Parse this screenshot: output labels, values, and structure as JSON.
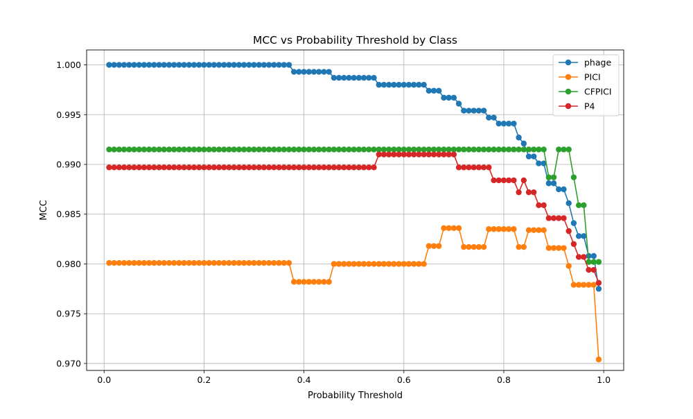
{
  "chart_data": {
    "type": "line",
    "title": "MCC vs Probability Threshold by Class",
    "xlabel": "Probability Threshold",
    "ylabel": "MCC",
    "xlim": [
      -0.035,
      1.04
    ],
    "ylim": [
      0.9693,
      1.0015
    ],
    "xticks": [
      0.0,
      0.2,
      0.4,
      0.6,
      0.8,
      1.0
    ],
    "xtick_labels": [
      "0.0",
      "0.2",
      "0.4",
      "0.6",
      "0.8",
      "1.0"
    ],
    "yticks": [
      0.97,
      0.975,
      0.98,
      0.985,
      0.99,
      0.995,
      1.0
    ],
    "ytick_labels": [
      "0.970",
      "0.975",
      "0.980",
      "0.985",
      "0.990",
      "0.995",
      "1.000"
    ],
    "grid": true,
    "legend_position": "top-right",
    "x": [
      0.01,
      0.02,
      0.03,
      0.04,
      0.05,
      0.06,
      0.07,
      0.08,
      0.09,
      0.1,
      0.11,
      0.12,
      0.13,
      0.14,
      0.15,
      0.16,
      0.17,
      0.18,
      0.19,
      0.2,
      0.21,
      0.22,
      0.23,
      0.24,
      0.25,
      0.26,
      0.27,
      0.28,
      0.29,
      0.3,
      0.31,
      0.32,
      0.33,
      0.34,
      0.35,
      0.36,
      0.37,
      0.38,
      0.39,
      0.4,
      0.41,
      0.42,
      0.43,
      0.44,
      0.45,
      0.46,
      0.47,
      0.48,
      0.49,
      0.5,
      0.51,
      0.52,
      0.53,
      0.54,
      0.55,
      0.56,
      0.57,
      0.58,
      0.59,
      0.6,
      0.61,
      0.62,
      0.63,
      0.64,
      0.65,
      0.66,
      0.67,
      0.68,
      0.69,
      0.7,
      0.71,
      0.72,
      0.73,
      0.74,
      0.75,
      0.76,
      0.77,
      0.78,
      0.79,
      0.8,
      0.81,
      0.82,
      0.83,
      0.84,
      0.85,
      0.86,
      0.87,
      0.88,
      0.89,
      0.9,
      0.91,
      0.92,
      0.93,
      0.94,
      0.95,
      0.96,
      0.97,
      0.98,
      0.99
    ],
    "series": [
      {
        "name": "phage",
        "color": "#1f77b4",
        "values": [
          1.0,
          1.0,
          1.0,
          1.0,
          1.0,
          1.0,
          1.0,
          1.0,
          1.0,
          1.0,
          1.0,
          1.0,
          1.0,
          1.0,
          1.0,
          1.0,
          1.0,
          1.0,
          1.0,
          1.0,
          1.0,
          1.0,
          1.0,
          1.0,
          1.0,
          1.0,
          1.0,
          1.0,
          1.0,
          1.0,
          1.0,
          1.0,
          1.0,
          1.0,
          1.0,
          1.0,
          1.0,
          0.9993,
          0.9993,
          0.9993,
          0.9993,
          0.9993,
          0.9993,
          0.9993,
          0.9993,
          0.9987,
          0.9987,
          0.9987,
          0.9987,
          0.9987,
          0.9987,
          0.9987,
          0.9987,
          0.9987,
          0.998,
          0.998,
          0.998,
          0.998,
          0.998,
          0.998,
          0.998,
          0.998,
          0.998,
          0.998,
          0.9974,
          0.9974,
          0.9974,
          0.9967,
          0.9967,
          0.9967,
          0.9961,
          0.9954,
          0.9954,
          0.9954,
          0.9954,
          0.9954,
          0.9947,
          0.9947,
          0.9941,
          0.9941,
          0.9941,
          0.9941,
          0.9927,
          0.9921,
          0.9908,
          0.9908,
          0.9901,
          0.9901,
          0.9881,
          0.9881,
          0.9875,
          0.9875,
          0.9861,
          0.9841,
          0.9828,
          0.9828,
          0.9808,
          0.9808,
          0.9775
        ]
      },
      {
        "name": "PICI",
        "color": "#ff7f0e",
        "values": [
          0.9801,
          0.9801,
          0.9801,
          0.9801,
          0.9801,
          0.9801,
          0.9801,
          0.9801,
          0.9801,
          0.9801,
          0.9801,
          0.9801,
          0.9801,
          0.9801,
          0.9801,
          0.9801,
          0.9801,
          0.9801,
          0.9801,
          0.9801,
          0.9801,
          0.9801,
          0.9801,
          0.9801,
          0.9801,
          0.9801,
          0.9801,
          0.9801,
          0.9801,
          0.9801,
          0.9801,
          0.9801,
          0.9801,
          0.9801,
          0.9801,
          0.9801,
          0.9801,
          0.9782,
          0.9782,
          0.9782,
          0.9782,
          0.9782,
          0.9782,
          0.9782,
          0.9782,
          0.98,
          0.98,
          0.98,
          0.98,
          0.98,
          0.98,
          0.98,
          0.98,
          0.98,
          0.98,
          0.98,
          0.98,
          0.98,
          0.98,
          0.98,
          0.98,
          0.98,
          0.98,
          0.98,
          0.9818,
          0.9818,
          0.9818,
          0.9836,
          0.9836,
          0.9836,
          0.9836,
          0.9817,
          0.9817,
          0.9817,
          0.9817,
          0.9817,
          0.9835,
          0.9835,
          0.9835,
          0.9835,
          0.9835,
          0.9835,
          0.9817,
          0.9817,
          0.9834,
          0.9834,
          0.9834,
          0.9834,
          0.9816,
          0.9816,
          0.9816,
          0.9816,
          0.9798,
          0.9779,
          0.9779,
          0.9779,
          0.9779,
          0.9779,
          0.9704
        ]
      },
      {
        "name": "CFPICI",
        "color": "#2ca02c",
        "values": [
          0.9915,
          0.9915,
          0.9915,
          0.9915,
          0.9915,
          0.9915,
          0.9915,
          0.9915,
          0.9915,
          0.9915,
          0.9915,
          0.9915,
          0.9915,
          0.9915,
          0.9915,
          0.9915,
          0.9915,
          0.9915,
          0.9915,
          0.9915,
          0.9915,
          0.9915,
          0.9915,
          0.9915,
          0.9915,
          0.9915,
          0.9915,
          0.9915,
          0.9915,
          0.9915,
          0.9915,
          0.9915,
          0.9915,
          0.9915,
          0.9915,
          0.9915,
          0.9915,
          0.9915,
          0.9915,
          0.9915,
          0.9915,
          0.9915,
          0.9915,
          0.9915,
          0.9915,
          0.9915,
          0.9915,
          0.9915,
          0.9915,
          0.9915,
          0.9915,
          0.9915,
          0.9915,
          0.9915,
          0.9915,
          0.9915,
          0.9915,
          0.9915,
          0.9915,
          0.9915,
          0.9915,
          0.9915,
          0.9915,
          0.9915,
          0.9915,
          0.9915,
          0.9915,
          0.9915,
          0.9915,
          0.9915,
          0.9915,
          0.9915,
          0.9915,
          0.9915,
          0.9915,
          0.9915,
          0.9915,
          0.9915,
          0.9915,
          0.9915,
          0.9915,
          0.9915,
          0.9915,
          0.9915,
          0.9915,
          0.9915,
          0.9915,
          0.9915,
          0.9887,
          0.9887,
          0.9915,
          0.9915,
          0.9915,
          0.9887,
          0.9859,
          0.9859,
          0.9802,
          0.9802,
          0.9802
        ]
      },
      {
        "name": "P4",
        "color": "#d62728",
        "values": [
          0.9897,
          0.9897,
          0.9897,
          0.9897,
          0.9897,
          0.9897,
          0.9897,
          0.9897,
          0.9897,
          0.9897,
          0.9897,
          0.9897,
          0.9897,
          0.9897,
          0.9897,
          0.9897,
          0.9897,
          0.9897,
          0.9897,
          0.9897,
          0.9897,
          0.9897,
          0.9897,
          0.9897,
          0.9897,
          0.9897,
          0.9897,
          0.9897,
          0.9897,
          0.9897,
          0.9897,
          0.9897,
          0.9897,
          0.9897,
          0.9897,
          0.9897,
          0.9897,
          0.9897,
          0.9897,
          0.9897,
          0.9897,
          0.9897,
          0.9897,
          0.9897,
          0.9897,
          0.9897,
          0.9897,
          0.9897,
          0.9897,
          0.9897,
          0.9897,
          0.9897,
          0.9897,
          0.9897,
          0.991,
          0.991,
          0.991,
          0.991,
          0.991,
          0.991,
          0.991,
          0.991,
          0.991,
          0.991,
          0.991,
          0.991,
          0.991,
          0.991,
          0.991,
          0.991,
          0.9897,
          0.9897,
          0.9897,
          0.9897,
          0.9897,
          0.9897,
          0.9897,
          0.9884,
          0.9884,
          0.9884,
          0.9884,
          0.9884,
          0.9872,
          0.9884,
          0.9872,
          0.9872,
          0.9859,
          0.9859,
          0.9846,
          0.9846,
          0.9846,
          0.9846,
          0.9833,
          0.982,
          0.9807,
          0.9807,
          0.9794,
          0.9794,
          0.9781
        ]
      }
    ]
  }
}
